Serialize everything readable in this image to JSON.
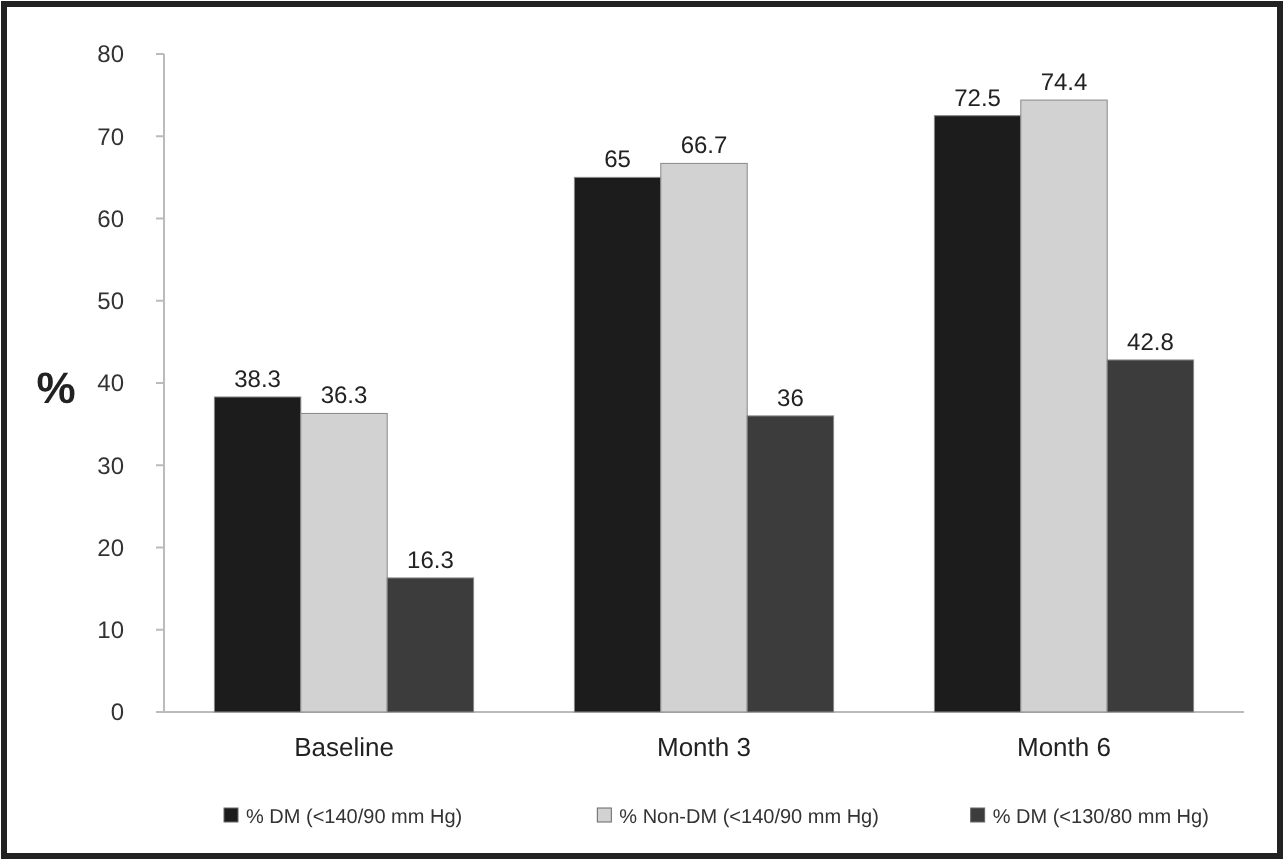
{
  "chart_data": {
    "type": "bar",
    "ylabel": "%",
    "categories": [
      "Baseline",
      "Month 3",
      "Month 6"
    ],
    "series": [
      {
        "name": "% DM (<140/90 mm Hg)",
        "color": "#1c1c1c",
        "values": [
          38.3,
          65,
          72.5
        ]
      },
      {
        "name": "% Non-DM (<140/90 mm Hg)",
        "color": "#d2d2d2",
        "values": [
          36.3,
          66.7,
          74.4
        ]
      },
      {
        "name": "% DM (<130/80 mm Hg)",
        "color": "#3c3c3c",
        "values": [
          16.3,
          36,
          42.8
        ]
      }
    ],
    "ylim": [
      0,
      80
    ],
    "yticks": [
      0,
      10,
      20,
      30,
      40,
      50,
      60,
      70,
      80
    ],
    "data_labels": true,
    "legend": "bottom",
    "grid": false
  }
}
